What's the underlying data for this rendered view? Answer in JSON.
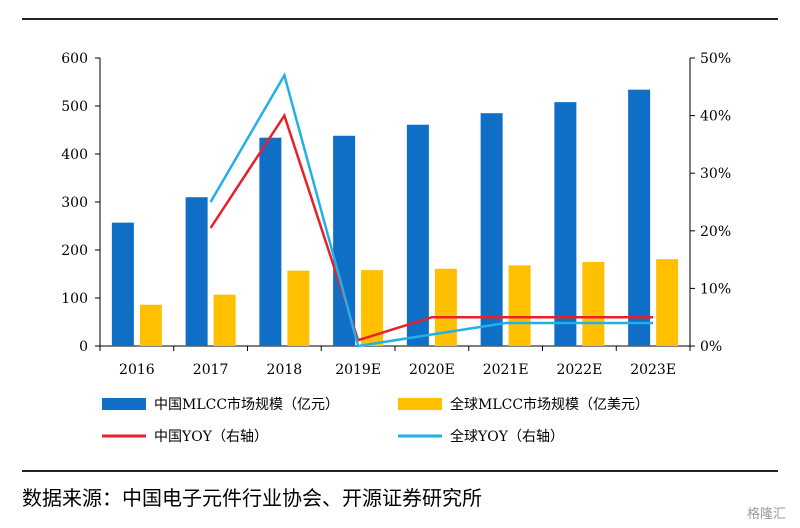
{
  "chart_data": {
    "type": "bar",
    "categories": [
      "2016",
      "2017",
      "2018",
      "2019E",
      "2020E",
      "2021E",
      "2022E",
      "2023E"
    ],
    "series": [
      {
        "name": "中国MLCC市场规模（亿元）",
        "kind": "bar",
        "axis": "left",
        "color": "#0f6fc6",
        "values": [
          257,
          310,
          434,
          438,
          461,
          485,
          508,
          534
        ]
      },
      {
        "name": "全球MLCC市场规模（亿美元）",
        "kind": "bar",
        "axis": "left",
        "color": "#ffc000",
        "values": [
          86,
          107,
          157,
          158,
          161,
          168,
          175,
          181
        ]
      },
      {
        "name": "中国YOY（右轴）",
        "kind": "line",
        "axis": "right",
        "color": "#e8202a",
        "values": [
          null,
          0.205,
          0.4,
          0.01,
          0.05,
          0.05,
          0.05,
          0.05
        ]
      },
      {
        "name": "全球YOY（右轴）",
        "kind": "line",
        "axis": "right",
        "color": "#22b0e8",
        "values": [
          null,
          0.25,
          0.47,
          0.0,
          0.02,
          0.04,
          0.04,
          0.04
        ]
      }
    ],
    "y_left": {
      "min": 0,
      "max": 600,
      "ticks": [
        0,
        100,
        200,
        300,
        400,
        500,
        600
      ]
    },
    "y_right": {
      "min": 0,
      "max": 0.5,
      "ticks": [
        "0%",
        "10%",
        "20%",
        "30%",
        "40%",
        "50%"
      ]
    },
    "legend_position": "bottom",
    "grid": false
  },
  "source": "数据来源：中国电子元件行业协会、开源证券研究所",
  "watermark": "格隆汇"
}
